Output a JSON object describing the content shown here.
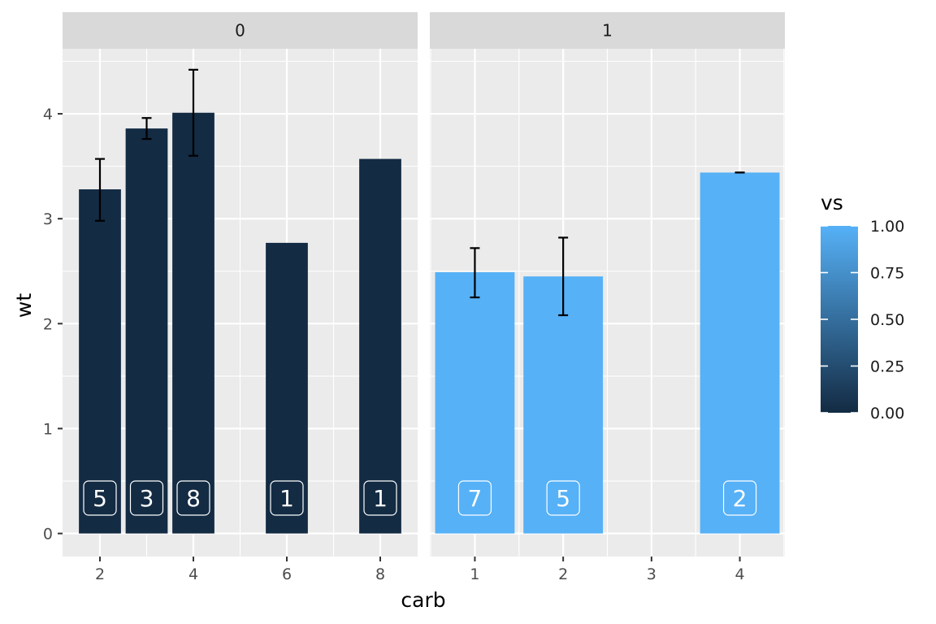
{
  "chart_data": {
    "type": "bar",
    "facet_variable": "vs",
    "xlabel": "carb",
    "ylabel": "wt",
    "ylim": [
      -0.22,
      4.62
    ],
    "y_ticks": [
      0,
      1,
      2,
      3,
      4
    ],
    "y_tick_labels": [
      "0",
      "1",
      "2",
      "3",
      "4"
    ],
    "grid": true,
    "legend": {
      "title": "vs",
      "position": "right",
      "type": "colorbar",
      "range": [
        0,
        1
      ],
      "ticks": [
        0,
        0.25,
        0.5,
        0.75,
        1
      ],
      "tick_labels": [
        "0.00",
        "0.25",
        "0.50",
        "0.75",
        "1.00"
      ],
      "low_color": "#132B43",
      "high_color": "#56B1F7"
    },
    "panels": [
      {
        "strip": "0",
        "fill": "#132B43",
        "xlim": [
          1.2,
          8.8
        ],
        "x_ticks": [
          2,
          4,
          6,
          8
        ],
        "x_tick_labels": [
          "2",
          "4",
          "6",
          "8"
        ],
        "x_minor": [
          3,
          5,
          7
        ],
        "bar_width": 0.9,
        "bars": [
          {
            "x": 2,
            "value": 3.28,
            "err_low": 2.98,
            "err_high": 3.57,
            "count": "5"
          },
          {
            "x": 3,
            "value": 3.86,
            "err_low": 3.76,
            "err_high": 3.96,
            "count": "3"
          },
          {
            "x": 4,
            "value": 4.01,
            "err_low": 3.6,
            "err_high": 4.42,
            "count": "8"
          },
          {
            "x": 6,
            "value": 2.77,
            "err_low": null,
            "err_high": null,
            "count": "1"
          },
          {
            "x": 8,
            "value": 3.57,
            "err_low": null,
            "err_high": null,
            "count": "1"
          }
        ]
      },
      {
        "strip": "1",
        "fill": "#56B1F7",
        "xlim": [
          0.49,
          4.51
        ],
        "x_ticks": [
          1,
          2,
          3,
          4
        ],
        "x_tick_labels": [
          "1",
          "2",
          "3",
          "4"
        ],
        "x_minor": [
          0.5,
          1.5,
          2.5,
          3.5,
          4.5
        ],
        "bar_width": 0.9,
        "bars": [
          {
            "x": 1,
            "value": 2.49,
            "err_low": 2.25,
            "err_high": 2.72,
            "count": "7"
          },
          {
            "x": 2,
            "value": 2.45,
            "err_low": 2.08,
            "err_high": 2.82,
            "count": "5"
          },
          {
            "x": 4,
            "value": 3.44,
            "err_low": 3.44,
            "err_high": 3.44,
            "count": "2"
          }
        ]
      }
    ]
  }
}
